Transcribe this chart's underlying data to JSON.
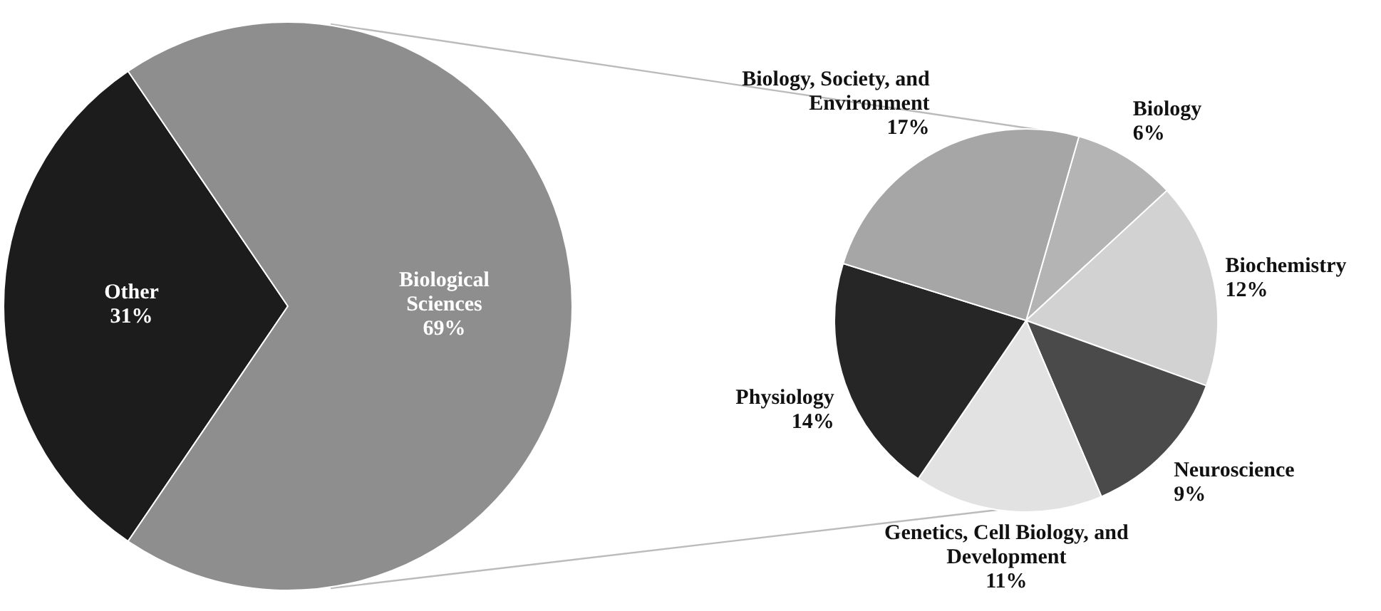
{
  "chart_data": [
    {
      "type": "pie",
      "categories": [
        "Other",
        "Biological Sciences"
      ],
      "values": [
        31,
        69
      ],
      "colors": [
        "#1c1c1c",
        "#8e8e8e"
      ],
      "value_labels": [
        "31%",
        "69%"
      ]
    },
    {
      "type": "pie",
      "categories": [
        "Biology",
        "Biochemistry",
        "Neuroscience",
        "Genetics, Cell Biology, and Development",
        "Physiology",
        "Biology, Society, and Environment"
      ],
      "values": [
        6,
        12,
        9,
        11,
        14,
        17
      ],
      "colors": [
        "#b4b4b4",
        "#d2d2d2",
        "#4a4a4a",
        "#e2e2e2",
        "#262626",
        "#a6a6a6"
      ],
      "value_labels": [
        "6%",
        "12%",
        "9%",
        "11%",
        "14%",
        "17%"
      ]
    }
  ]
}
